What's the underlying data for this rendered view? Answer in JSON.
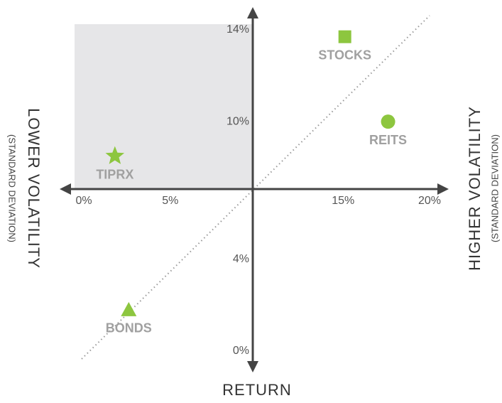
{
  "chart_data": {
    "type": "scatter",
    "color": "#8dc63f",
    "x_label_left": "LOWER VOLATILITY",
    "x_sublabel_left": "(STANDARD DEVIATION)",
    "x_label_right": "HIGHER VOLATILITY",
    "x_sublabel_right": "(STANDARD DEVIATION)",
    "y_label": "RETURN",
    "xlim": [
      0,
      20
    ],
    "xticks": [
      {
        "value": 0,
        "label": "0%"
      },
      {
        "value": 5,
        "label": "5%"
      },
      {
        "value": 15,
        "label": "15%"
      },
      {
        "value": 20,
        "label": "20%"
      }
    ],
    "ylim": [
      0,
      14
    ],
    "yticks": [
      {
        "value": 0,
        "label": "0%"
      },
      {
        "value": 4,
        "label": "4%"
      },
      {
        "value": 10,
        "label": "10%"
      },
      {
        "value": 14,
        "label": "14%"
      }
    ],
    "points": [
      {
        "name": "STOCKS",
        "x": 15.1,
        "y": 13.7,
        "marker": "square"
      },
      {
        "name": "REITS",
        "x": 17.6,
        "y": 10.0,
        "marker": "circle"
      },
      {
        "name": "TIPRX",
        "x": 1.8,
        "y": 8.5,
        "marker": "star"
      },
      {
        "name": "BONDS",
        "x": 2.6,
        "y": 1.8,
        "marker": "triangle"
      }
    ]
  }
}
